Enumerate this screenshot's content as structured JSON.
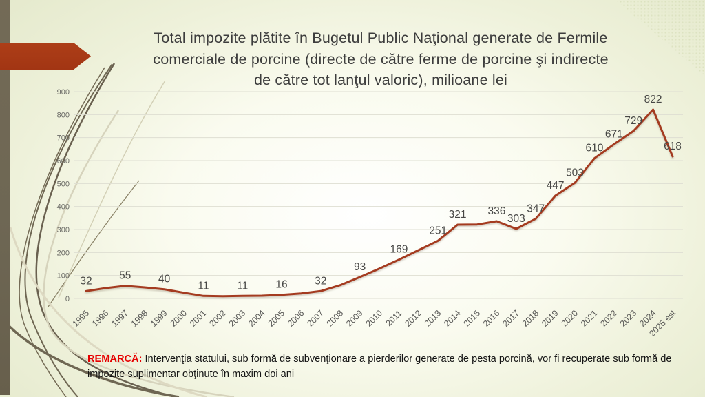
{
  "slide": {
    "title_lines": [
      "Total impozite plătite în Bugetul Public Naţional generate de Fermile",
      "comerciale de porcine (directe de către ferme de porcine şi indirecte",
      "de către tot lanţul valoric), milioane lei"
    ],
    "remark": {
      "label": "REMARCĂ:",
      "text": " Intervenţia statului, sub formă de subvenţionare a pierderilor generate de pesta porcină, vor fi recuperate sub formă de impozite suplimentar obţinute în maxim doi ani"
    }
  },
  "colors": {
    "background_edge": "#e3e8ca",
    "left_bar": "#6e6754",
    "arrow_red": "#a63a17",
    "line_red": "#a43b20",
    "grid": "#deded2",
    "title_text": "#3d3d3d",
    "axis_text": "#585856",
    "data_label_text": "#474745",
    "remark_red": "#e60000"
  },
  "chart_data": {
    "type": "line",
    "title": "Total impozite plătite în Bugetul Public Naţional generate de Fermile comerciale de porcine (directe de către ferme de porcine şi indirecte de către tot lanţul valoric), milioane lei",
    "unit": "milioane lei",
    "categories": [
      "1995",
      "1996",
      "1997",
      "1998",
      "1999",
      "2000",
      "2001",
      "2002",
      "2003",
      "2004",
      "2005",
      "2006",
      "2007",
      "2008",
      "2009",
      "2010",
      "2011",
      "2012",
      "2013",
      "2014",
      "2015",
      "2016",
      "2017",
      "2018",
      "2019",
      "2020",
      "2021",
      "2022",
      "2023",
      "2024",
      "2025 est"
    ],
    "values": [
      32,
      45,
      55,
      48,
      40,
      25,
      11,
      10,
      11,
      12,
      16,
      22,
      32,
      58,
      93,
      130,
      169,
      210,
      251,
      321,
      322,
      336,
      303,
      347,
      447,
      503,
      610,
      671,
      729,
      822,
      618
    ],
    "data_labels": [
      32,
      null,
      55,
      null,
      40,
      null,
      11,
      null,
      11,
      null,
      16,
      null,
      32,
      null,
      93,
      null,
      169,
      null,
      251,
      321,
      null,
      336,
      303,
      347,
      447,
      503,
      610,
      671,
      729,
      822,
      618
    ],
    "xlabel": "",
    "ylabel": "",
    "ylim": [
      0,
      900
    ],
    "ytick_step": 100,
    "grid": true,
    "legend": "none",
    "line_color": "#a43b20"
  }
}
